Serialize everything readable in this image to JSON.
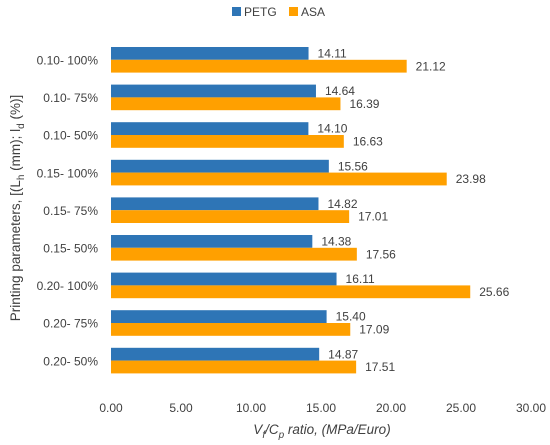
{
  "chart_data": {
    "type": "bar",
    "orientation": "horizontal",
    "categories": [
      "0.10- 100%",
      "0.10- 75%",
      "0.10- 50%",
      "0.15- 100%",
      "0.15- 75%",
      "0.15- 50%",
      "0.20- 100%",
      "0.20- 75%",
      "0.20- 50%"
    ],
    "series": [
      {
        "name": "PETG",
        "color": "#2e75b6",
        "values": [
          14.11,
          14.64,
          14.1,
          15.56,
          14.82,
          14.38,
          16.11,
          15.4,
          14.87
        ],
        "labels": [
          "14.11",
          "14.64",
          "14.10",
          "15.56",
          "14.82",
          "14.38",
          "16.11",
          "15.40",
          "14.87"
        ]
      },
      {
        "name": "ASA",
        "color": "#ffa000",
        "values": [
          21.12,
          16.39,
          16.63,
          23.98,
          17.01,
          17.56,
          25.66,
          17.09,
          17.51
        ],
        "labels": [
          "21.12",
          "16.39",
          "16.63",
          "23.98",
          "17.01",
          "17.56",
          "25.66",
          "17.09",
          "17.51"
        ]
      }
    ],
    "xlim": [
      0,
      30
    ],
    "xticks": [
      "0.00",
      "5.00",
      "10.00",
      "15.00",
      "20.00",
      "25.00",
      "30.00"
    ],
    "xlabel": {
      "main": "V",
      "sub": "f",
      "sep": "/C",
      "sub2": "p",
      "rest": " ratio, (MPa/Euro)"
    },
    "ylabel": {
      "pre": "Printing parameters, [(L",
      "sub1": "h",
      "mid": " (mm); l",
      "sub2": "d",
      "post": " (%)]"
    },
    "legend_position": "top-center",
    "grid": false
  }
}
